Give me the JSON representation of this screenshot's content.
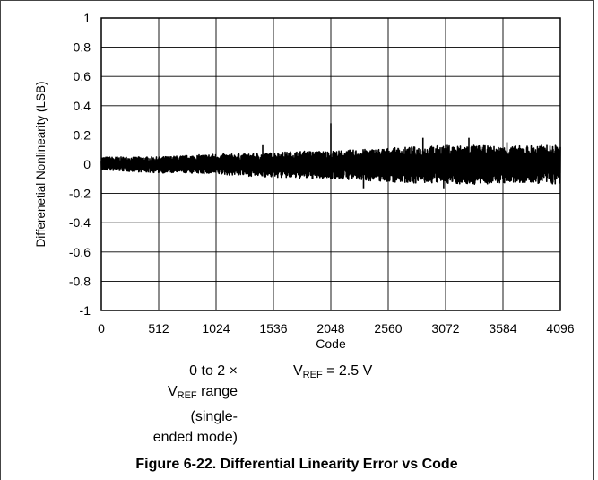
{
  "chart_data": {
    "type": "line",
    "xlabel": "Code",
    "ylabel": "Differenetial Nonlinearity (LSB)",
    "xlim": [
      0,
      4096
    ],
    "ylim": [
      -1,
      1
    ],
    "x_ticks": [
      "0",
      "512",
      "1024",
      "1536",
      "2048",
      "2560",
      "3072",
      "3584",
      "4096"
    ],
    "y_ticks": [
      "1",
      "0.8",
      "0.6",
      "0.4",
      "0.2",
      "0",
      "-0.2",
      "-0.4",
      "-0.6",
      "-0.8",
      "-1"
    ],
    "grid": true,
    "series": [
      {
        "envelope": {
          "x": [
            0,
            256,
            512,
            768,
            1024,
            1280,
            1536,
            1792,
            2048,
            2304,
            2560,
            2816,
            3072,
            3328,
            3584,
            3840,
            4096
          ],
          "upper": [
            0.05,
            0.05,
            0.05,
            0.06,
            0.07,
            0.07,
            0.08,
            0.09,
            0.09,
            0.1,
            0.11,
            0.12,
            0.13,
            0.13,
            0.12,
            0.13,
            0.13
          ],
          "lower": [
            -0.04,
            -0.05,
            -0.06,
            -0.06,
            -0.07,
            -0.08,
            -0.09,
            -0.1,
            -0.1,
            -0.11,
            -0.12,
            -0.13,
            -0.13,
            -0.14,
            -0.13,
            -0.13,
            -0.14
          ]
        },
        "spikes": [
          {
            "x": 2048,
            "y": 0.28
          },
          {
            "x": 1440,
            "y": 0.13
          },
          {
            "x": 2870,
            "y": 0.18
          },
          {
            "x": 3280,
            "y": 0.18
          },
          {
            "x": 3620,
            "y": 0.15
          },
          {
            "x": 3055,
            "y": -0.17
          },
          {
            "x": 2340,
            "y": -0.17
          }
        ]
      }
    ]
  },
  "annotations": {
    "range_line1": "0 to 2 ×",
    "range_vref_main": "V",
    "range_vref_sub": "REF",
    "range_line2_rest": " range (single-",
    "range_line3": "ended mode)",
    "vref_main": "V",
    "vref_sub": "REF",
    "vref_rest": " = 2.5 V"
  },
  "caption": "Figure 6-22. Differential Linearity Error vs Code"
}
